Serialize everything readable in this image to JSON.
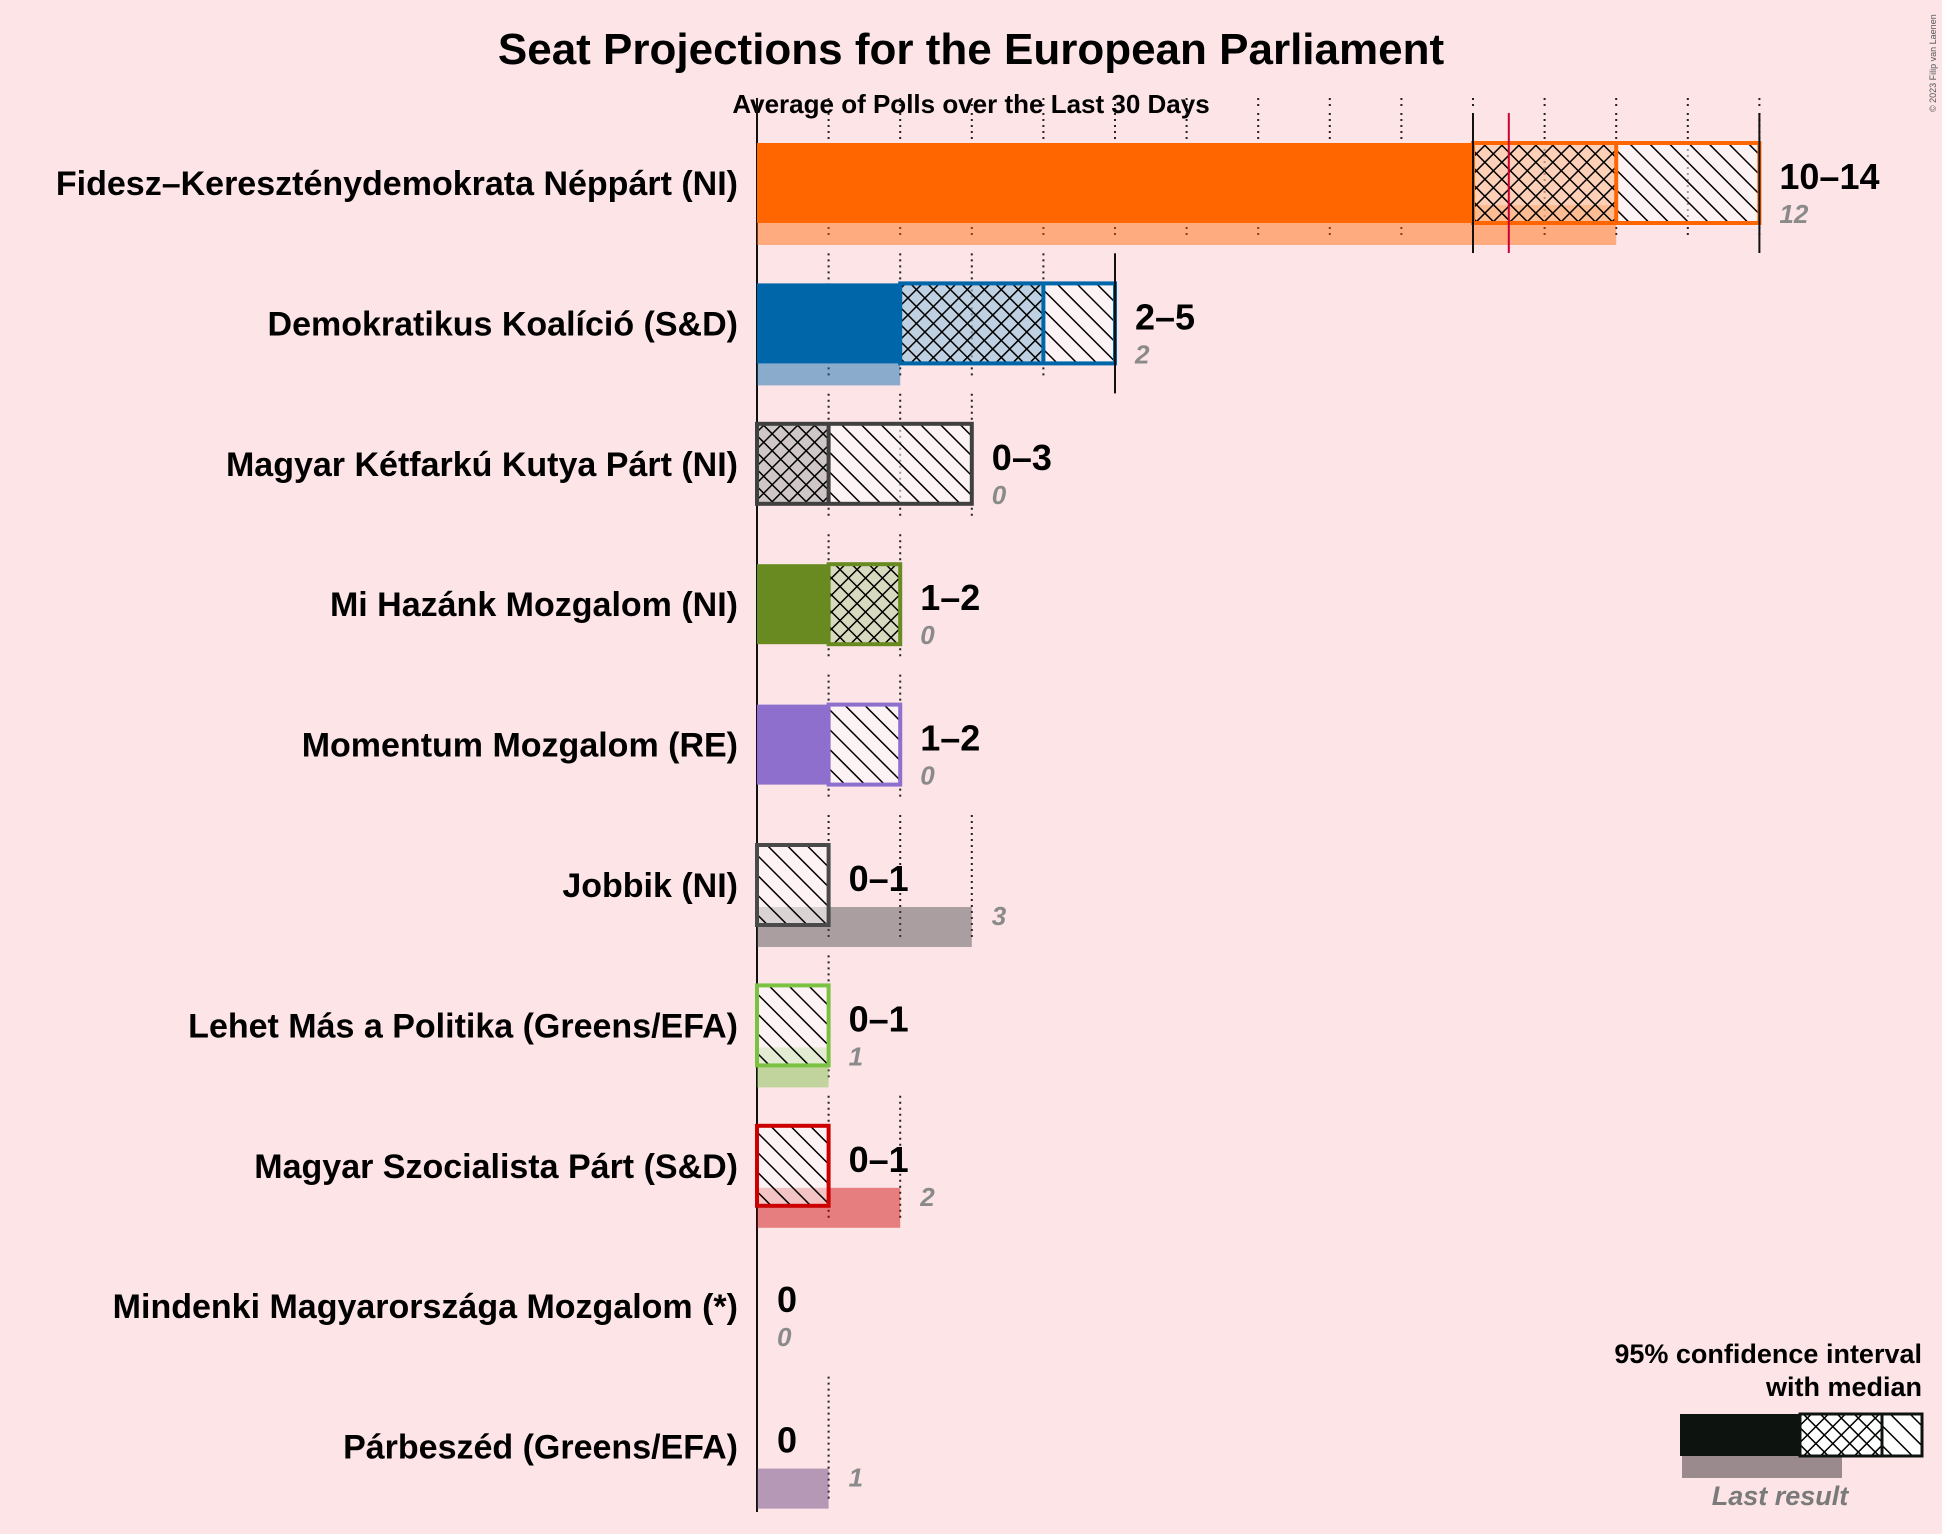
{
  "chart_data": {
    "type": "bar",
    "title": "Seat Projections for the European Parliament",
    "subtitle": "Average of Polls over the Last 30 Days",
    "copyright": "© 2023 Filip van Laenen",
    "xlim": [
      0,
      14
    ],
    "parties": [
      {
        "name": "Fidesz–Kereszténydemokrata Néppárt (NI)",
        "color": "#FF6600",
        "low": 10,
        "median": 12,
        "high": 14,
        "ci50_low": 10,
        "ci50_high": 12,
        "range_label": "10–14",
        "last_result": 12,
        "last_label": "12",
        "majority_marker": 10.5
      },
      {
        "name": "Demokratikus Koalíció (S&D)",
        "color": "#0066AA",
        "low": 2,
        "median": 4,
        "high": 5,
        "ci50_low": 2,
        "ci50_high": 4,
        "range_label": "2–5",
        "last_result": 2,
        "last_label": "2"
      },
      {
        "name": "Magyar Kétfarkú Kutya Párt (NI)",
        "color": "#404040",
        "low": 0,
        "median": 1,
        "high": 3,
        "ci50_low": 0,
        "ci50_high": 1,
        "range_label": "0–3",
        "last_result": 0,
        "last_label": "0"
      },
      {
        "name": "Mi Hazánk Mozgalom (NI)",
        "color": "#688A21",
        "low": 1,
        "median": 2,
        "high": 2,
        "ci50_low": 1,
        "ci50_high": 2,
        "range_label": "1–2",
        "last_result": 0,
        "last_label": "0"
      },
      {
        "name": "Momentum Mozgalom (RE)",
        "color": "#8E6FCE",
        "low": 1,
        "median": 1,
        "high": 2,
        "ci50_low": 1,
        "ci50_high": 1,
        "range_label": "1–2",
        "last_result": 0,
        "last_label": "0"
      },
      {
        "name": "Jobbik (NI)",
        "color": "#4A4A4A",
        "low": 0,
        "median": 0,
        "high": 1,
        "ci50_low": 0,
        "ci50_high": 0,
        "range_label": "0–1",
        "last_result": 3,
        "last_label": "3"
      },
      {
        "name": "Lehet Más a Politika (Greens/EFA)",
        "color": "#7CC242",
        "low": 0,
        "median": 0,
        "high": 1,
        "ci50_low": 0,
        "ci50_high": 0,
        "range_label": "0–1",
        "last_result": 1,
        "last_label": "1"
      },
      {
        "name": "Magyar Szocialista Párt (S&D)",
        "color": "#CC0000",
        "low": 0,
        "median": 0,
        "high": 1,
        "ci50_low": 0,
        "ci50_high": 0,
        "range_label": "0–1",
        "last_result": 2,
        "last_label": "2"
      },
      {
        "name": "Mindenki Magyarországa Mozgalom (*)",
        "color": "#888888",
        "low": 0,
        "median": 0,
        "high": 0,
        "ci50_low": 0,
        "ci50_high": 0,
        "range_label": "0",
        "last_result": 0,
        "last_label": "0"
      },
      {
        "name": "Párbeszéd (Greens/EFA)",
        "color": "#5F3A7A",
        "low": 0,
        "median": 0,
        "high": 0,
        "ci50_low": 0,
        "ci50_high": 0,
        "range_label": "0",
        "last_result": 1,
        "last_label": "1"
      }
    ],
    "legend": {
      "line1": "95% confidence interval",
      "line2": "with median",
      "last_result": "Last result",
      "placement": "bottom-right"
    }
  }
}
